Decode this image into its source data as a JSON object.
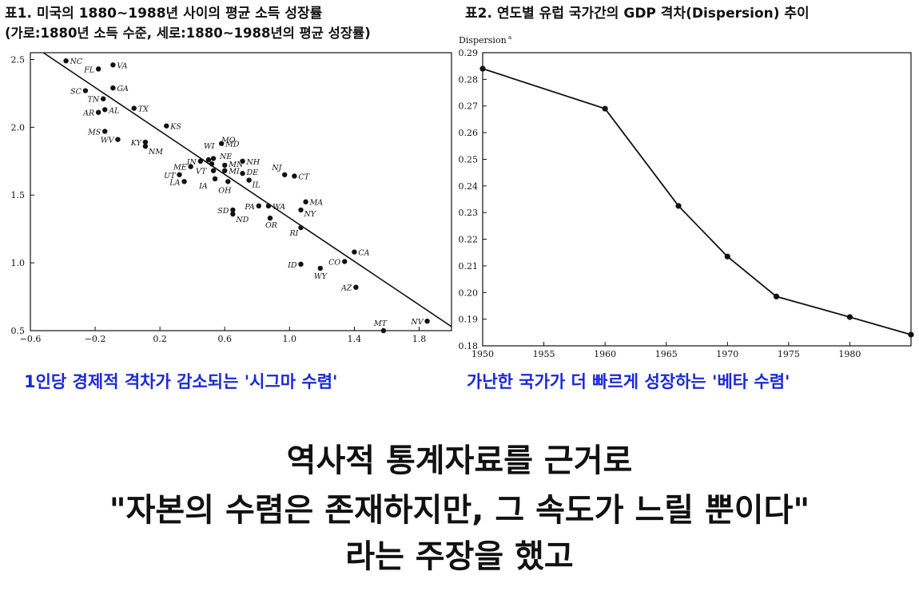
{
  "titles": {
    "table1_line1": "표1. 미국의 1880~1988년 사이의 평균 소득 성장률",
    "table1_line2": "(가로:1880년 소득 수준, 세로:1880~1988년의 평균 성장률)",
    "table2": "표2. 연도별 유럽 국가간의 GDP 격차(Dispersion) 추이"
  },
  "captions": {
    "sigma": "1인당 경제적 격차가 감소되는 '시그마 수렴'",
    "beta": "가난한 국가가 더 빠르게 성장하는 '베타 수렴'"
  },
  "headline": {
    "line1": "역사적 통계자료를 근거로",
    "line2": "\"자본의 수렴은 존재하지만, 그 속도가 느릴 뿐이다\"",
    "line3": "라는 주장을 했고"
  },
  "colors": {
    "caption_blue": "#1a29d6",
    "ink": "#111111"
  },
  "chart_data": [
    {
      "type": "scatter",
      "xlim": [
        -0.6,
        2.0
      ],
      "ylim": [
        0.5,
        2.55
      ],
      "xticks": [
        -0.6,
        -0.2,
        0.2,
        0.6,
        1.0,
        1.4,
        1.8
      ],
      "xtick_labels": [
        "−0.6",
        "−0.2",
        "0.2",
        "0.6",
        "1.0",
        "1.4",
        "1.8"
      ],
      "yticks": [
        0.5,
        1.0,
        1.5,
        2.0,
        2.5
      ],
      "ytick_labels": [
        "0.5",
        "1.0",
        "1.5",
        "2.0",
        "2.5"
      ],
      "fit_line": {
        "x": [
          -0.52,
          2.0
        ],
        "y": [
          2.55,
          0.53
        ]
      },
      "points": [
        {
          "label": "NC",
          "x": -0.38,
          "y": 2.49
        },
        {
          "label": "FL",
          "x": -0.18,
          "y": 2.43
        },
        {
          "label": "VA",
          "x": -0.09,
          "y": 2.46
        },
        {
          "label": "SC",
          "x": -0.26,
          "y": 2.27
        },
        {
          "label": "GA",
          "x": -0.09,
          "y": 2.29
        },
        {
          "label": "TN",
          "x": -0.15,
          "y": 2.21
        },
        {
          "label": "AR",
          "x": -0.18,
          "y": 2.11
        },
        {
          "label": "AL",
          "x": -0.14,
          "y": 2.13
        },
        {
          "label": "TX",
          "x": 0.04,
          "y": 2.14
        },
        {
          "label": "MS",
          "x": -0.14,
          "y": 1.97
        },
        {
          "label": "WV",
          "x": -0.06,
          "y": 1.91
        },
        {
          "label": "KS",
          "x": 0.24,
          "y": 2.01
        },
        {
          "label": "KY",
          "x": 0.11,
          "y": 1.89
        },
        {
          "label": "NM",
          "x": 0.11,
          "y": 1.86
        },
        {
          "label": "MO",
          "x": 0.53,
          "y": 1.77
        },
        {
          "label": "WI",
          "x": 0.5,
          "y": 1.76
        },
        {
          "label": "IN",
          "x": 0.45,
          "y": 1.75
        },
        {
          "label": "MD",
          "x": 0.58,
          "y": 1.88
        },
        {
          "label": "NE",
          "x": 0.52,
          "y": 1.73
        },
        {
          "label": "ME",
          "x": 0.39,
          "y": 1.71
        },
        {
          "label": "NH",
          "x": 0.71,
          "y": 1.75
        },
        {
          "label": "MN",
          "x": 0.6,
          "y": 1.72
        },
        {
          "label": "VT",
          "x": 0.53,
          "y": 1.68
        },
        {
          "label": "MI",
          "x": 0.6,
          "y": 1.68
        },
        {
          "label": "DE",
          "x": 0.71,
          "y": 1.66
        },
        {
          "label": "UT",
          "x": 0.32,
          "y": 1.65
        },
        {
          "label": "IA",
          "x": 0.54,
          "y": 1.62
        },
        {
          "label": "OH",
          "x": 0.62,
          "y": 1.6
        },
        {
          "label": "IL",
          "x": 0.75,
          "y": 1.61
        },
        {
          "label": "NJ",
          "x": 0.97,
          "y": 1.65
        },
        {
          "label": "CT",
          "x": 1.03,
          "y": 1.64
        },
        {
          "label": "LA",
          "x": 0.35,
          "y": 1.6
        },
        {
          "label": "MA",
          "x": 1.1,
          "y": 1.45
        },
        {
          "label": "WA",
          "x": 0.87,
          "y": 1.42
        },
        {
          "label": "PA",
          "x": 0.81,
          "y": 1.42
        },
        {
          "label": "NY",
          "x": 1.07,
          "y": 1.39
        },
        {
          "label": "SD",
          "x": 0.65,
          "y": 1.39
        },
        {
          "label": "ND",
          "x": 0.65,
          "y": 1.36
        },
        {
          "label": "OR",
          "x": 0.88,
          "y": 1.33
        },
        {
          "label": "RI",
          "x": 1.07,
          "y": 1.26
        },
        {
          "label": "CA",
          "x": 1.4,
          "y": 1.08
        },
        {
          "label": "CO",
          "x": 1.34,
          "y": 1.01
        },
        {
          "label": "ID",
          "x": 1.07,
          "y": 0.99
        },
        {
          "label": "WY",
          "x": 1.19,
          "y": 0.96
        },
        {
          "label": "AZ",
          "x": 1.41,
          "y": 0.82
        },
        {
          "label": "NV",
          "x": 1.85,
          "y": 0.57
        },
        {
          "label": "MT",
          "x": 1.58,
          "y": 0.5
        }
      ]
    },
    {
      "type": "line",
      "ylabel": "Dispersion",
      "ylabel_sup": "a",
      "xlim": [
        1950,
        1985
      ],
      "ylim": [
        0.18,
        0.29
      ],
      "xticks": [
        1950,
        1955,
        1960,
        1965,
        1970,
        1975,
        1980
      ],
      "xtick_labels": [
        "1950",
        "1955",
        "1960",
        "1965",
        "1970",
        "1975",
        "1980"
      ],
      "yticks": [
        0.18,
        0.19,
        0.2,
        0.21,
        0.22,
        0.23,
        0.24,
        0.25,
        0.26,
        0.27,
        0.28,
        0.29
      ],
      "ytick_labels": [
        "0.18",
        "0.19",
        "0.20",
        "0.21",
        "0.22",
        "0.23",
        "0.24",
        "0.25",
        "0.26",
        "0.27",
        "0.28",
        "0.29"
      ],
      "x": [
        1950,
        1960,
        1966,
        1970,
        1974,
        1980,
        1985
      ],
      "y": [
        0.284,
        0.269,
        0.2325,
        0.2135,
        0.1985,
        0.1908,
        0.1842
      ]
    }
  ]
}
